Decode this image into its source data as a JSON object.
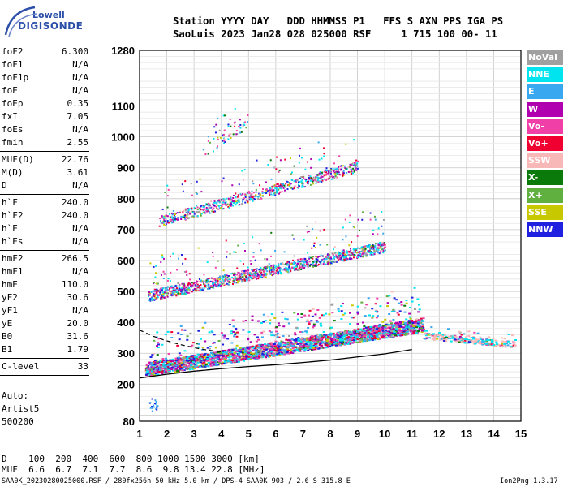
{
  "logo": {
    "top": "Lowell",
    "bottom": "DIGISONDE"
  },
  "header": {
    "line1": "Station YYYY DAY   DDD HHMMSS P1   FFS S AXN PPS IGA PS",
    "line2": "SaoLuis 2023 Jan28 028 025000 RSF     1 715 100 00- 11"
  },
  "params_group1": [
    {
      "k": "foF2",
      "v": "6.300"
    },
    {
      "k": "foF1",
      "v": "N/A"
    },
    {
      "k": "foF1p",
      "v": "N/A"
    },
    {
      "k": "foE",
      "v": "N/A"
    },
    {
      "k": "foEp",
      "v": "0.35"
    },
    {
      "k": "fxI",
      "v": "7.05"
    },
    {
      "k": "foEs",
      "v": "N/A"
    },
    {
      "k": "fmin",
      "v": "2.55"
    }
  ],
  "params_group2": [
    {
      "k": "MUF(D)",
      "v": "22.76"
    },
    {
      "k": "M(D)",
      "v": "3.61"
    },
    {
      "k": "D",
      "v": "N/A"
    }
  ],
  "params_group3": [
    {
      "k": "h`F",
      "v": "240.0"
    },
    {
      "k": "h`F2",
      "v": "240.0"
    },
    {
      "k": "h`E",
      "v": "N/A"
    },
    {
      "k": "h`Es",
      "v": "N/A"
    }
  ],
  "params_group4": [
    {
      "k": "hmF2",
      "v": "266.5"
    },
    {
      "k": "hmF1",
      "v": "N/A"
    },
    {
      "k": "hmE",
      "v": "110.0"
    },
    {
      "k": "yF2",
      "v": "30.6"
    },
    {
      "k": "yF1",
      "v": "N/A"
    },
    {
      "k": "yE",
      "v": "20.0"
    },
    {
      "k": "B0",
      "v": "31.6"
    },
    {
      "k": "B1",
      "v": "1.79"
    }
  ],
  "clevel": {
    "k": "C-level",
    "v": "33"
  },
  "auto": {
    "line1": "Auto:",
    "line2": "Artist5",
    "line3": "500200"
  },
  "legend": [
    {
      "label": "NoVal",
      "color": "#a0a0a0"
    },
    {
      "label": "NNE",
      "color": "#00e4f0"
    },
    {
      "label": "E",
      "color": "#3aa8f0"
    },
    {
      "label": "W",
      "color": "#b000b0"
    },
    {
      "label": "Vo-",
      "color": "#f040a8"
    },
    {
      "label": "Vo+",
      "color": "#f00030"
    },
    {
      "label": "SSW",
      "color": "#f8b8b8"
    },
    {
      "label": "X-",
      "color": "#0a7a0a"
    },
    {
      "label": "X+",
      "color": "#60b040"
    },
    {
      "label": "SSE",
      "color": "#c8c800"
    },
    {
      "label": "NNW",
      "color": "#2020e0"
    }
  ],
  "distance_table": {
    "row1": "D    100  200  400  600  800 1000 1500 3000 [km]",
    "row2": "MUF  6.6  6.7  7.1  7.7  8.6  9.8 13.4 22.8 [MHz]"
  },
  "footer": {
    "left": "SAA0K_20230280025000.RSF / 280fx256h 50 kHz 5.0 km / DPS-4 SAA0K 903 / 2.6 S 315.8 E",
    "right": "Ion2Png 1.3.17"
  },
  "chart_data": {
    "type": "scatter",
    "title": "",
    "xlabel": "",
    "ylabel": "",
    "xlim": [
      1,
      15
    ],
    "ylim": [
      80,
      1280
    ],
    "x_ticks": [
      1,
      2,
      3,
      4,
      5,
      6,
      7,
      8,
      9,
      10,
      11,
      12,
      13,
      14,
      15
    ],
    "y_ticks": [
      80,
      200,
      300,
      400,
      500,
      600,
      700,
      800,
      900,
      1000,
      1100,
      1280
    ],
    "grid": true,
    "bands": [
      {
        "name": "F2 O-trace",
        "x_start": 1.2,
        "x_end": 11.4,
        "y_start": 240,
        "y_end": 385
      },
      {
        "name": "F2 X-trace",
        "x_start": 11.4,
        "x_end": 14.8,
        "y_start": 355,
        "y_end": 325
      },
      {
        "name": "2nd hop",
        "x_start": 1.3,
        "x_end": 10.0,
        "y_start": 480,
        "y_end": 640
      },
      {
        "name": "3rd hop",
        "x_start": 1.7,
        "x_end": 9.0,
        "y_start": 720,
        "y_end": 900
      },
      {
        "name": "scatter",
        "x_start": 3.3,
        "x_end": 5.0,
        "y_start": 950,
        "y_end": 1050
      }
    ],
    "profile_curve": {
      "x": [
        1,
        2,
        3,
        4,
        5,
        6,
        7,
        8,
        9,
        10,
        11
      ],
      "y": [
        220,
        232,
        242,
        250,
        257,
        263,
        270,
        278,
        288,
        298,
        312
      ]
    },
    "dashed_curve": {
      "x": [
        1,
        1.5,
        2,
        2.5,
        3,
        3.5,
        4
      ],
      "y": [
        375,
        355,
        340,
        328,
        318,
        310,
        305
      ]
    },
    "small_cluster": {
      "x": 1.3,
      "y": 135
    }
  }
}
